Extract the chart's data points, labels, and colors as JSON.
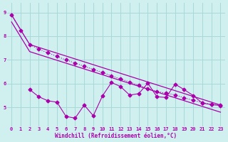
{
  "xlabel": "Windchill (Refroidissement éolien,°C)",
  "xlim": [
    -0.5,
    23.5
  ],
  "ylim": [
    4.2,
    9.4
  ],
  "yticks": [
    5,
    6,
    7,
    8,
    9
  ],
  "xticks": [
    0,
    1,
    2,
    3,
    4,
    5,
    6,
    7,
    8,
    9,
    10,
    11,
    12,
    13,
    14,
    15,
    16,
    17,
    18,
    19,
    20,
    21,
    22,
    23
  ],
  "bg_color": "#d0f0f0",
  "grid_color": "#a8d8d8",
  "line_color": "#aa00aa",
  "line1_x": [
    0,
    1,
    2,
    3,
    4,
    5,
    6,
    7,
    8,
    9,
    10,
    11,
    12,
    13,
    14,
    15,
    16,
    17,
    18,
    19,
    20,
    21,
    22,
    23
  ],
  "line1_y": [
    8.9,
    8.25,
    7.65,
    7.45,
    7.3,
    7.15,
    7.0,
    6.87,
    6.73,
    6.6,
    6.47,
    6.33,
    6.2,
    6.07,
    5.93,
    5.8,
    5.67,
    5.6,
    5.53,
    5.4,
    5.3,
    5.2,
    5.13,
    5.1
  ],
  "line2_x": [
    0,
    2,
    23
  ],
  "line2_y": [
    8.9,
    7.65,
    5.1
  ],
  "line3_x": [
    0,
    2,
    23
  ],
  "line3_y": [
    8.6,
    7.35,
    4.8
  ],
  "line4_x": [
    2,
    3,
    4,
    5,
    6,
    7,
    8,
    9,
    10,
    11,
    12,
    13,
    14,
    15,
    16,
    17,
    18,
    19,
    20,
    21,
    22,
    23
  ],
  "line4_y": [
    5.75,
    5.45,
    5.28,
    5.22,
    4.62,
    4.55,
    5.1,
    4.65,
    5.48,
    6.05,
    5.88,
    5.52,
    5.58,
    6.02,
    5.45,
    5.42,
    5.98,
    5.75,
    5.5,
    5.18,
    5.12,
    5.08
  ]
}
